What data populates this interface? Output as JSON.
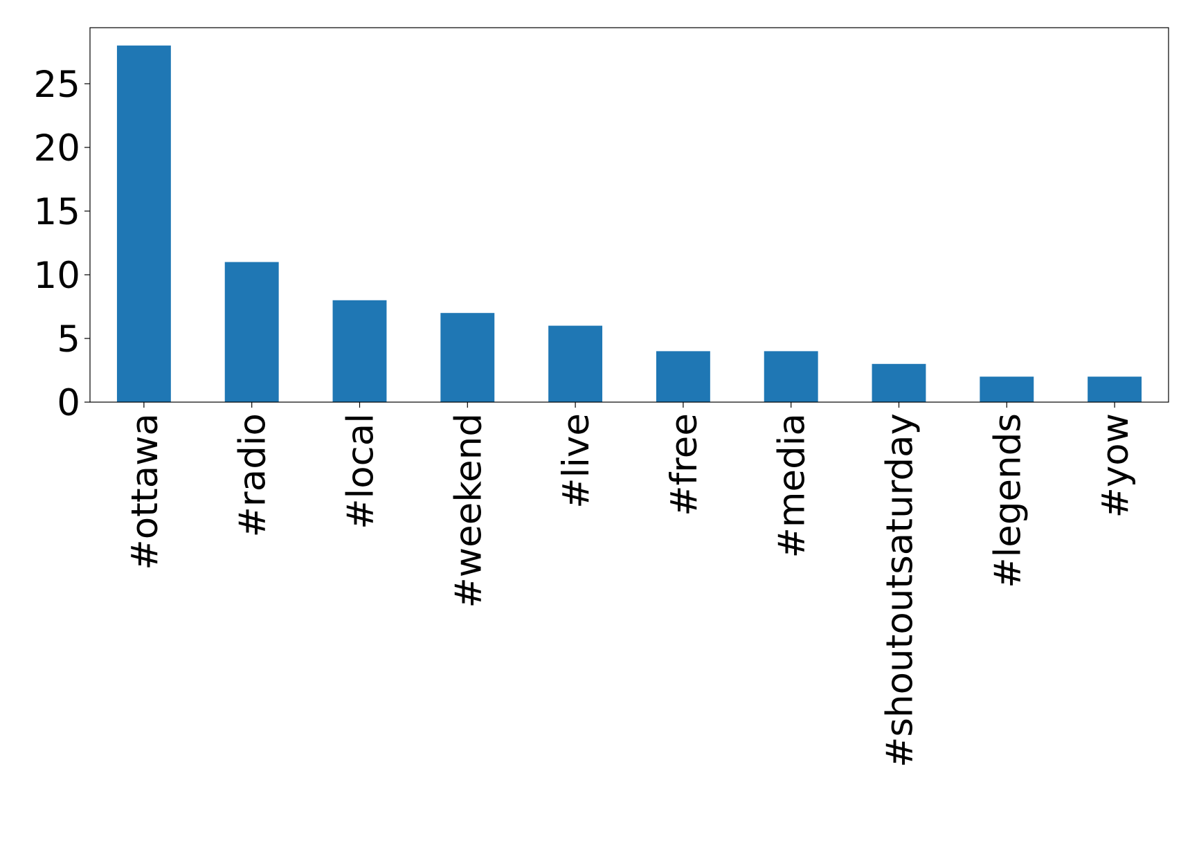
{
  "chart_data": {
    "type": "bar",
    "categories": [
      "#ottawa",
      "#radio",
      "#local",
      "#weekend",
      "#live",
      "#free",
      "#media",
      "#shoutoutsaturday",
      "#legends",
      "#yow"
    ],
    "values": [
      28,
      11,
      8,
      7,
      6,
      4,
      4,
      3,
      2,
      2
    ],
    "color": "#1f77b4",
    "ylim": [
      0,
      29.4
    ],
    "yticks": [
      0,
      5,
      10,
      15,
      20,
      25
    ],
    "grid": false
  }
}
